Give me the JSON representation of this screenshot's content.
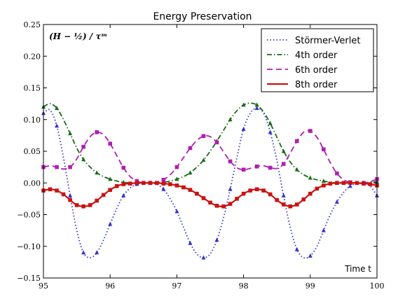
{
  "chart_data": {
    "type": "line",
    "title": "Energy Preservation",
    "annotation": "(H − ½) / τᵐ",
    "xlabel": "Time t",
    "ylabel": "",
    "xlim": [
      95,
      100
    ],
    "ylim": [
      -0.15,
      0.25
    ],
    "x_ticks": [
      95,
      96,
      97,
      98,
      99,
      100
    ],
    "y_ticks": [
      -0.15,
      -0.1,
      -0.05,
      0.0,
      0.05,
      0.1,
      0.15,
      0.2,
      0.25
    ],
    "x_tick_labels": [
      "95",
      "96",
      "97",
      "98",
      "99",
      "100"
    ],
    "y_tick_labels": [
      "−0.15",
      "−0.10",
      "−0.05",
      "0.00",
      "0.05",
      "0.10",
      "0.15",
      "0.20",
      "0.25"
    ],
    "legend_position": "top-right",
    "grid": false,
    "series": [
      {
        "name": "Störmer-Verlet",
        "color": "#3333cc",
        "line_style": "dotted",
        "marker": "triangle",
        "x": [
          95.0,
          95.1,
          95.2,
          95.3,
          95.4,
          95.5,
          95.6,
          95.7,
          95.8,
          95.9,
          96.0,
          96.1,
          96.2,
          96.3,
          96.4,
          96.5,
          96.6,
          96.7,
          96.8,
          96.9,
          97.0,
          97.1,
          97.2,
          97.3,
          97.4,
          97.5,
          97.6,
          97.7,
          97.8,
          97.9,
          98.0,
          98.1,
          98.2,
          98.3,
          98.4,
          98.5,
          98.6,
          98.7,
          98.8,
          98.9,
          99.0,
          99.1,
          99.2,
          99.3,
          99.4,
          99.5,
          99.6,
          99.7,
          99.8,
          99.9,
          100.0
        ],
        "y": [
          0.11,
          0.115,
          0.09,
          0.04,
          -0.02,
          -0.075,
          -0.11,
          -0.118,
          -0.11,
          -0.09,
          -0.065,
          -0.04,
          -0.02,
          -0.008,
          -0.002,
          0.0,
          0.0,
          -0.002,
          -0.01,
          -0.025,
          -0.045,
          -0.07,
          -0.095,
          -0.112,
          -0.118,
          -0.112,
          -0.09,
          -0.055,
          -0.01,
          0.04,
          0.085,
          0.11,
          0.118,
          0.11,
          0.08,
          0.035,
          -0.02,
          -0.07,
          -0.105,
          -0.118,
          -0.115,
          -0.1,
          -0.075,
          -0.05,
          -0.03,
          -0.015,
          -0.005,
          -0.001,
          0.0,
          -0.005,
          -0.02
        ]
      },
      {
        "name": "4th order",
        "color": "#1a6b1a",
        "line_style": "dashdot",
        "marker": "triangle",
        "x": [
          95.0,
          95.1,
          95.2,
          95.3,
          95.4,
          95.5,
          95.6,
          95.7,
          95.8,
          95.9,
          96.0,
          96.1,
          96.2,
          96.3,
          96.4,
          96.5,
          96.6,
          96.7,
          96.8,
          96.9,
          97.0,
          97.1,
          97.2,
          97.3,
          97.4,
          97.5,
          97.6,
          97.7,
          97.8,
          97.9,
          98.0,
          98.1,
          98.2,
          98.3,
          98.4,
          98.5,
          98.6,
          98.7,
          98.8,
          98.9,
          99.0,
          99.1,
          99.2,
          99.3,
          99.4,
          99.5,
          99.6,
          99.7,
          99.8,
          99.9,
          100.0
        ],
        "y": [
          0.12,
          0.125,
          0.118,
          0.1,
          0.078,
          0.055,
          0.037,
          0.025,
          0.016,
          0.01,
          0.006,
          0.003,
          0.001,
          0.0,
          0.0,
          0.0,
          0.0,
          0.0,
          0.001,
          0.003,
          0.006,
          0.01,
          0.016,
          0.025,
          0.036,
          0.05,
          0.066,
          0.083,
          0.1,
          0.114,
          0.123,
          0.126,
          0.123,
          0.112,
          0.094,
          0.072,
          0.05,
          0.033,
          0.021,
          0.013,
          0.008,
          0.005,
          0.003,
          0.001,
          0.0,
          0.0,
          0.0,
          0.0,
          0.0,
          0.001,
          0.002
        ]
      },
      {
        "name": "6th order",
        "color": "#b01eb0",
        "line_style": "dashed",
        "marker": "square",
        "x": [
          95.0,
          95.1,
          95.2,
          95.3,
          95.4,
          95.5,
          95.6,
          95.7,
          95.8,
          95.9,
          96.0,
          96.1,
          96.2,
          96.3,
          96.4,
          96.5,
          96.6,
          96.7,
          96.8,
          96.9,
          97.0,
          97.1,
          97.2,
          97.3,
          97.4,
          97.5,
          97.6,
          97.7,
          97.8,
          97.9,
          98.0,
          98.1,
          98.2,
          98.3,
          98.4,
          98.5,
          98.6,
          98.7,
          98.8,
          98.9,
          99.0,
          99.1,
          99.2,
          99.3,
          99.4,
          99.5,
          99.6,
          99.7,
          99.8,
          99.9,
          100.0
        ],
        "y": [
          0.025,
          0.027,
          0.025,
          0.022,
          0.025,
          0.038,
          0.057,
          0.073,
          0.08,
          0.076,
          0.062,
          0.043,
          0.024,
          0.01,
          0.003,
          0.0,
          0.0,
          0.001,
          0.005,
          0.013,
          0.025,
          0.04,
          0.055,
          0.067,
          0.074,
          0.073,
          0.064,
          0.049,
          0.034,
          0.024,
          0.021,
          0.023,
          0.026,
          0.027,
          0.024,
          0.023,
          0.03,
          0.047,
          0.066,
          0.08,
          0.082,
          0.072,
          0.053,
          0.032,
          0.015,
          0.005,
          0.001,
          0.0,
          0.0,
          0.002,
          0.006
        ]
      },
      {
        "name": "8th order",
        "color": "#cc1111",
        "line_style": "solid",
        "marker": "square",
        "x": [
          95.0,
          95.1,
          95.2,
          95.3,
          95.4,
          95.5,
          95.6,
          95.7,
          95.8,
          95.9,
          96.0,
          96.1,
          96.2,
          96.3,
          96.4,
          96.5,
          96.6,
          96.7,
          96.8,
          96.9,
          97.0,
          97.1,
          97.2,
          97.3,
          97.4,
          97.5,
          97.6,
          97.7,
          97.8,
          97.9,
          98.0,
          98.1,
          98.2,
          98.3,
          98.4,
          98.5,
          98.6,
          98.7,
          98.8,
          98.9,
          99.0,
          99.1,
          99.2,
          99.3,
          99.4,
          99.5,
          99.6,
          99.7,
          99.8,
          99.9,
          100.0
        ],
        "y": [
          -0.012,
          -0.01,
          -0.012,
          -0.018,
          -0.027,
          -0.035,
          -0.037,
          -0.035,
          -0.028,
          -0.019,
          -0.011,
          -0.005,
          -0.002,
          -0.001,
          0.0,
          0.0,
          0.0,
          0.0,
          -0.001,
          -0.002,
          -0.004,
          -0.007,
          -0.011,
          -0.017,
          -0.024,
          -0.031,
          -0.036,
          -0.037,
          -0.033,
          -0.025,
          -0.017,
          -0.012,
          -0.01,
          -0.012,
          -0.018,
          -0.027,
          -0.034,
          -0.037,
          -0.034,
          -0.026,
          -0.017,
          -0.009,
          -0.004,
          -0.001,
          0.0,
          0.0,
          0.0,
          0.0,
          -0.001,
          -0.002,
          -0.004
        ]
      }
    ]
  }
}
